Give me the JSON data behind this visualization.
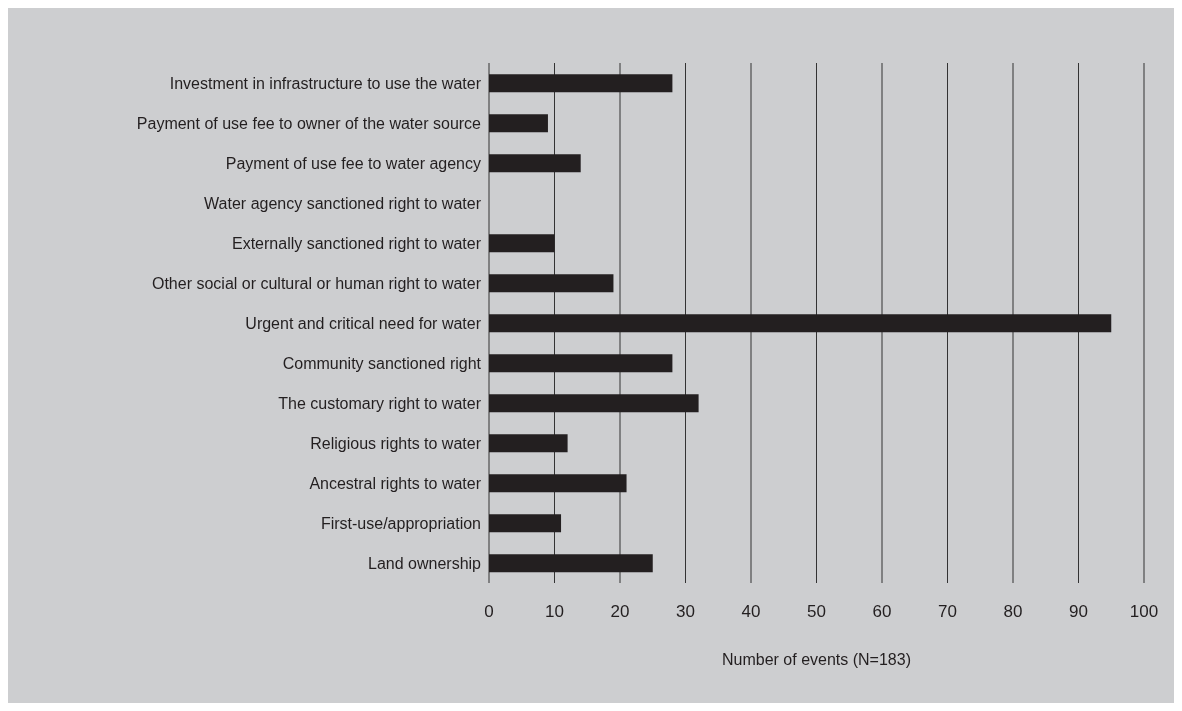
{
  "chart_data": {
    "type": "bar",
    "orientation": "horizontal",
    "xlabel": "Number of events (N=183)",
    "categories": [
      "Investment in infrastructure to use the water",
      "Payment of use fee to owner of the water source",
      "Payment of use fee to water agency",
      "Water agency sanctioned right to water",
      "Externally sanctioned right to water",
      "Other social or cultural or human right to water",
      "Urgent and critical need for water",
      "Community sanctioned right",
      "The customary right to water",
      "Religious rights to water",
      "Ancestral rights to water",
      "First-use/appropriation",
      "Land ownership"
    ],
    "values": [
      28,
      9,
      14,
      0,
      10,
      19,
      95,
      28,
      32,
      12,
      21,
      11,
      25
    ],
    "color": "#231f20",
    "xlim": [
      0,
      100
    ],
    "xticks": [
      0,
      10,
      20,
      30,
      40,
      50,
      60,
      70,
      80,
      90,
      100
    ],
    "grid": "x",
    "legend": false
  }
}
